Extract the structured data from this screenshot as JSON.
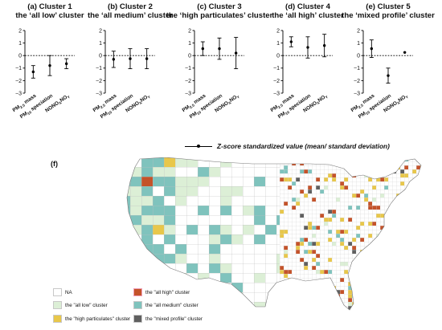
{
  "chart_data": [
    {
      "type": "scatter",
      "panel": "(a)",
      "title": [
        "(a) Cluster 1",
        "the ‘all low’ cluster"
      ],
      "categories": [
        "PM2.5 mass",
        "PM10 speciation",
        "NONOxNOY"
      ],
      "mean": [
        -1.3,
        -0.8,
        -0.65
      ],
      "sd": [
        0.5,
        0.8,
        0.4
      ],
      "ylim": [
        -3,
        2
      ],
      "yticks": [
        "2",
        "1",
        "0",
        "−1",
        "−2",
        "−3"
      ]
    },
    {
      "type": "scatter",
      "panel": "(b)",
      "title": [
        "(b) Cluster 2",
        "the ‘all medium’ cluster"
      ],
      "categories": [
        "PM2.5 mass",
        "PM10 speciation",
        "NONOxNOY"
      ],
      "mean": [
        -0.3,
        -0.25,
        -0.25
      ],
      "sd": [
        0.65,
        0.8,
        0.8
      ],
      "ylim": [
        -3,
        2
      ],
      "yticks": [
        "2",
        "1",
        "0",
        "−1",
        "−2",
        "−3"
      ]
    },
    {
      "type": "scatter",
      "panel": "(c)",
      "title": [
        "(c) Cluster 3",
        "the ‘high particulates’ cluster"
      ],
      "categories": [
        "PM2.5 mass",
        "PM10 speciation",
        "NONOxNOY"
      ],
      "mean": [
        0.55,
        0.55,
        0.2
      ],
      "sd": [
        0.55,
        0.85,
        1.25
      ],
      "ylim": [
        -3,
        2
      ],
      "yticks": [
        "2",
        "1",
        "0",
        "−1",
        "−2",
        "−3"
      ]
    },
    {
      "type": "scatter",
      "panel": "(d)",
      "title": [
        "(d) Cluster 4",
        "the ‘all high’ cluster"
      ],
      "categories": [
        "PM2.5 mass",
        "PM10 speciation",
        "NONOxNOY"
      ],
      "mean": [
        1.1,
        0.65,
        0.8
      ],
      "sd": [
        0.4,
        0.85,
        0.9
      ],
      "ylim": [
        -3,
        2
      ],
      "yticks": [
        "2",
        "1",
        "0",
        "−1",
        "−2",
        "−3"
      ]
    },
    {
      "type": "scatter",
      "panel": "(e)",
      "title": [
        "(e) Cluster 5",
        "the ‘mixed profile’ cluster"
      ],
      "categories": [
        "PM2.5 mass",
        "PM10 speciation",
        "NONOxNOY"
      ],
      "mean": [
        0.55,
        -1.6,
        0.25
      ],
      "sd": [
        0.7,
        0.6,
        0
      ],
      "ylim": [
        -3,
        2
      ],
      "yticks": [
        "2",
        "1",
        "0",
        "−1",
        "−2",
        "−3"
      ]
    }
  ],
  "legend": {
    "errorbar_label": "Z-score standardized value (mean/ standard deviation)"
  },
  "map": {
    "panel_label": "(f)",
    "legend": [
      {
        "label": "NA",
        "color": "#ffffff"
      },
      {
        "label": "the \"all low\" cluster",
        "color": "#dcefd6"
      },
      {
        "label": "the \"high particulates\" cluster",
        "color": "#e8c74a"
      },
      {
        "label": "the \"all high\" cluster",
        "color": "#c4532a"
      },
      {
        "label": "the \"all medium\" cluster",
        "color": "#7fc3bd"
      },
      {
        "label": "the \"mixed profile\" cluster",
        "color": "#606060"
      }
    ]
  }
}
